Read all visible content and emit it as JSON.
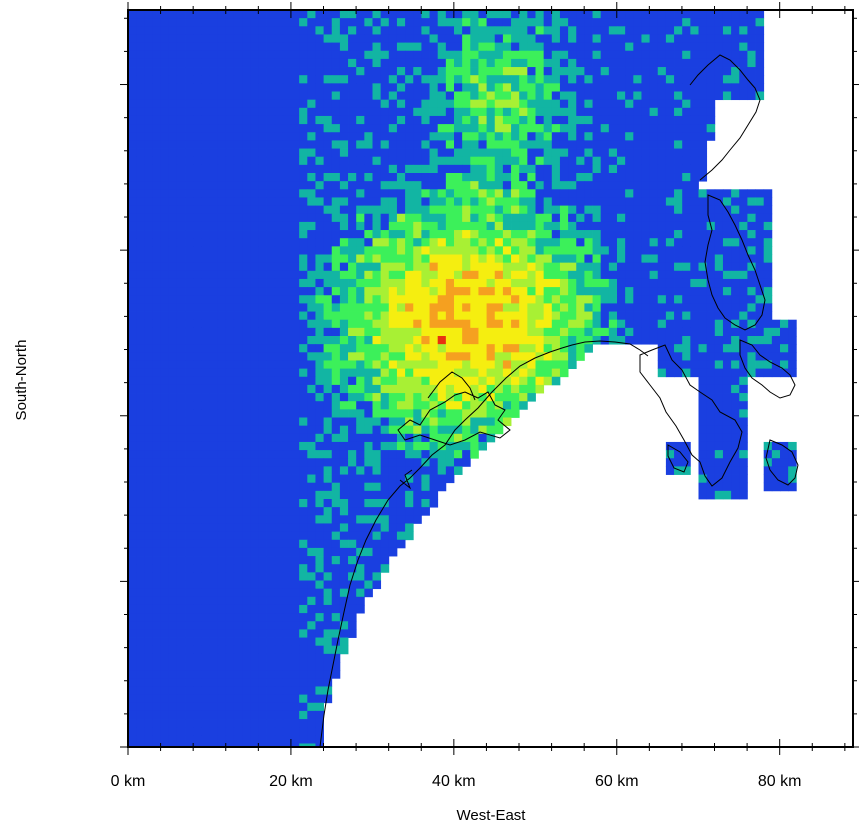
{
  "map": {
    "x_axis": {
      "title": "West-East",
      "tick_labels": [
        "0 km",
        "20 km",
        "40 km",
        "60 km",
        "80 km"
      ],
      "tick_values_km": [
        0,
        20,
        40,
        60,
        80
      ],
      "range_km": [
        0,
        89
      ]
    },
    "y_axis": {
      "title": "South-North",
      "tick_labels": [],
      "range_km": [
        0,
        89
      ]
    },
    "palette": {
      "low": "#1a3fe0",
      "mid_low": "#12b5a3",
      "mid": "#3cf05a",
      "mid_high": "#a8f034",
      "high": "#f5ee10",
      "very_high": "#f5a020",
      "max": "#e83010"
    },
    "coastline_color": "#000000",
    "background": "#ffffff"
  }
}
